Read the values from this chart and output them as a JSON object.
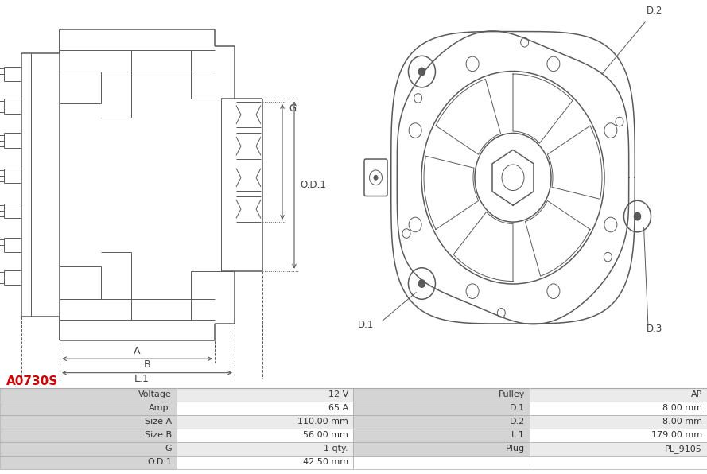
{
  "title": "A0730S",
  "title_color": "#cc0000",
  "bg_color": "#ffffff",
  "table": {
    "rows": [
      [
        "Voltage",
        "12 V",
        "Pulley",
        "AP"
      ],
      [
        "Amp.",
        "65 A",
        "D.1",
        "8.00 mm"
      ],
      [
        "Size A",
        "110.00 mm",
        "D.2",
        "8.00 mm"
      ],
      [
        "Size B",
        "56.00 mm",
        "L.1",
        "179.00 mm"
      ],
      [
        "G",
        "1 qty.",
        "Plug",
        "PL_9105"
      ],
      [
        "O.D.1",
        "42.50 mm",
        "",
        ""
      ]
    ],
    "header_bg": "#d4d4d4",
    "cell_bg": "#ffffff",
    "alt_bg": "#ebebeb",
    "border_color": "#aaaaaa",
    "text_color": "#333333"
  },
  "line_color": "#5a5a5a",
  "dim_color": "#5a5a5a",
  "label_color": "#444444"
}
